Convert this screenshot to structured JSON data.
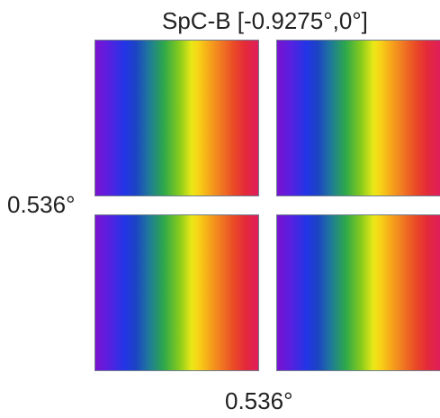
{
  "figure": {
    "title": "SpC-B [-0.9275°,0°]",
    "left_label": "0.536°",
    "bottom_label": "0.536°"
  },
  "panels": [
    {
      "name": "panel-top-left",
      "colormap": "spectral-horizontal"
    },
    {
      "name": "panel-top-right",
      "colormap": "spectral-horizontal"
    },
    {
      "name": "panel-bottom-left",
      "colormap": "spectral-horizontal"
    },
    {
      "name": "panel-bottom-right",
      "colormap": "spectral-horizontal"
    }
  ],
  "colors": {
    "border": "#6f7f8f",
    "text": "#222222",
    "background": "#ffffff"
  }
}
